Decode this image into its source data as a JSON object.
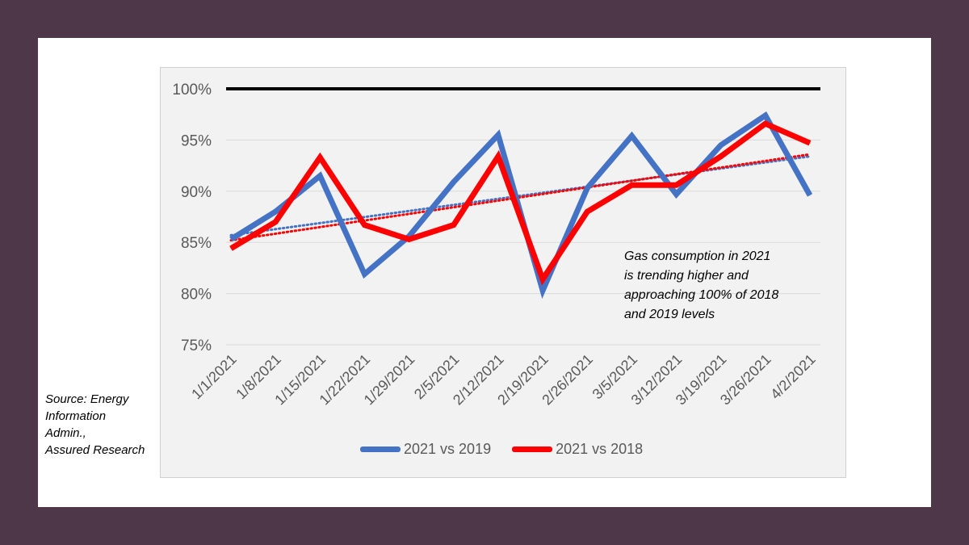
{
  "source_note": {
    "lines": [
      "Source: Energy",
      "Information",
      "Admin.,",
      "Assured Research"
    ]
  },
  "annotation": {
    "lines": [
      "Gas consumption in 2021",
      "is trending higher and",
      "approaching 100% of 2018",
      "and 2019 levels"
    ]
  },
  "chart_data": {
    "type": "line",
    "categories": [
      "1/1/2021",
      "1/8/2021",
      "1/15/2021",
      "1/22/2021",
      "1/29/2021",
      "2/5/2021",
      "2/12/2021",
      "2/19/2021",
      "2/26/2021",
      "3/5/2021",
      "3/12/2021",
      "3/19/2021",
      "3/26/2021",
      "4/2/2021"
    ],
    "y_tick_labels": [
      "75%",
      "80%",
      "85%",
      "90%",
      "95%",
      "100%"
    ],
    "y_ticks": [
      75,
      80,
      85,
      90,
      95,
      100
    ],
    "ylim": [
      75,
      100
    ],
    "grid": true,
    "reference_line": {
      "value": 100,
      "color": "#000000"
    },
    "series": [
      {
        "name": "2021 vs 2019",
        "color": "#4472c4",
        "values": [
          85.3,
          88.0,
          91.5,
          81.9,
          85.6,
          90.9,
          95.5,
          80.3,
          90.3,
          95.4,
          89.7,
          94.5,
          97.4,
          89.6
        ],
        "trendline": [
          85.7,
          93.4
        ]
      },
      {
        "name": "2021 vs 2018",
        "color": "#ff0000",
        "values": [
          84.4,
          87.0,
          93.3,
          86.7,
          85.3,
          86.7,
          93.4,
          81.4,
          88.0,
          90.6,
          90.6,
          93.4,
          96.6,
          94.7
        ],
        "trendline": [
          85.2,
          93.6
        ]
      }
    ],
    "legend_position": "bottom"
  }
}
